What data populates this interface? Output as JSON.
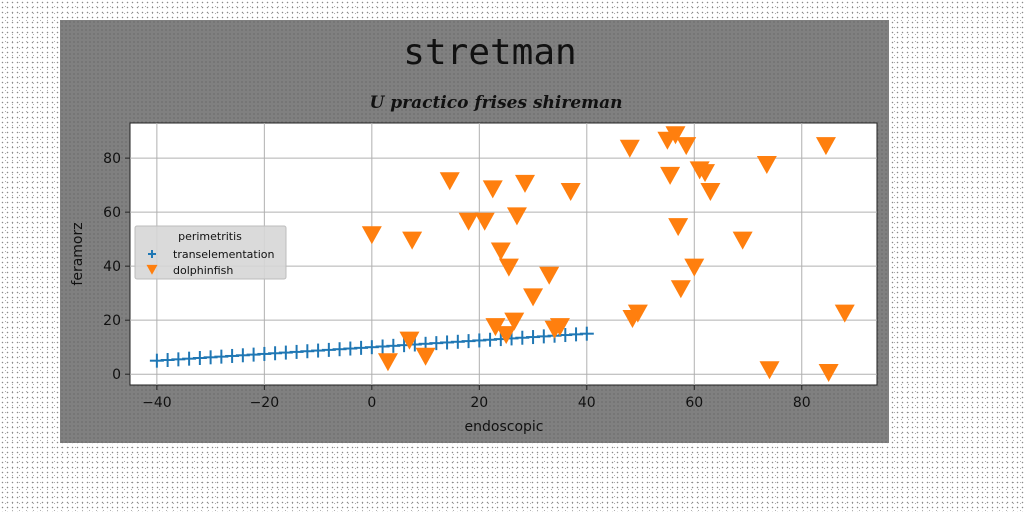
{
  "chart_data": {
    "type": "scatter",
    "title": "stretman",
    "subtitle": "U practico frises shireman",
    "xlabel": "endoscopic",
    "ylabel": "feramorz",
    "xlim": [
      -45,
      94
    ],
    "ylim": [
      -4,
      93
    ],
    "xticks": [
      -40,
      -20,
      0,
      20,
      40,
      60,
      80
    ],
    "yticks": [
      0,
      20,
      40,
      60,
      80
    ],
    "grid": true,
    "legend": {
      "title": "perimetritis",
      "placement": "center-left"
    },
    "series": [
      {
        "name": "transelementation",
        "marker": "plus",
        "color": "#1f77b4",
        "x": [
          -40,
          -38,
          -36,
          -34,
          -32,
          -30,
          -28,
          -26,
          -24,
          -22,
          -20,
          -18,
          -16,
          -14,
          -12,
          -10,
          -8,
          -6,
          -4,
          -2,
          0,
          2,
          4,
          6,
          8,
          10,
          12,
          14,
          16,
          18,
          20,
          22,
          24,
          26,
          28,
          30,
          32,
          34,
          36,
          38,
          40
        ],
        "y": [
          5.0,
          5.25,
          5.5,
          5.75,
          6.0,
          6.25,
          6.5,
          6.75,
          7.0,
          7.25,
          7.5,
          7.75,
          8.0,
          8.25,
          8.5,
          8.75,
          9.0,
          9.25,
          9.5,
          9.75,
          10.0,
          10.25,
          10.5,
          10.75,
          11.0,
          11.25,
          11.5,
          11.75,
          12.0,
          12.25,
          12.5,
          12.75,
          13.0,
          13.25,
          13.5,
          13.75,
          14.0,
          14.25,
          14.5,
          14.75,
          15.0
        ]
      },
      {
        "name": "dolphinfish",
        "marker": "triangle_down",
        "color": "#ff7f0e",
        "x": [
          0,
          3,
          7,
          7.5,
          10,
          14.5,
          18,
          21,
          22.5,
          23,
          24,
          25,
          25.5,
          26.5,
          27,
          28.5,
          30,
          33,
          34,
          35,
          37,
          48,
          48.5,
          49.5,
          55,
          55.5,
          56.5,
          57,
          57.5,
          58.5,
          60,
          61,
          62,
          63,
          69,
          73.5,
          74,
          84.5,
          85,
          88
        ],
        "y": [
          52,
          5,
          13,
          50,
          7,
          72,
          57,
          57,
          69,
          18,
          46,
          15,
          40,
          20,
          59,
          71,
          29,
          37,
          17,
          18,
          68,
          84,
          21,
          23,
          87,
          74,
          89,
          55,
          32,
          85,
          40,
          76,
          75,
          68,
          50,
          78,
          2,
          85,
          1,
          23
        ]
      }
    ]
  }
}
